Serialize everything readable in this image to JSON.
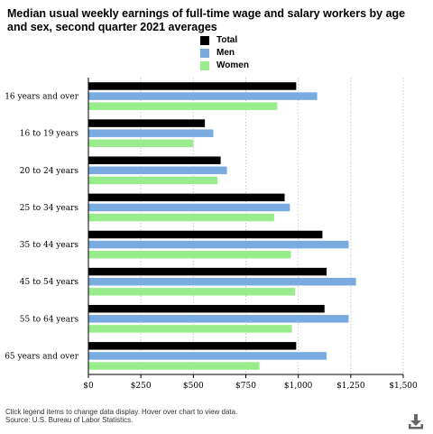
{
  "title": "Median usual weekly earnings of full-time wage and salary workers by age and sex, second quarter 2021 averages",
  "footer": {
    "note": "Click legend items to change data display. Hover over chart to view data.",
    "source": "Source: U.S. Bureau of Labor Statistics."
  },
  "icons": {
    "download": "download-icon"
  },
  "chart_data": {
    "type": "bar",
    "orientation": "horizontal",
    "title": "Median usual weekly earnings of full-time wage and salary workers by age and sex, second quarter 2021 averages",
    "categories": [
      "16 years and over",
      "16 to 19 years",
      "20 to 24 years",
      "25 to 34 years",
      "35 to 44 years",
      "45 to 54 years",
      "55 to 64 years",
      "65 years and over"
    ],
    "series": [
      {
        "name": "Total",
        "color": "#000000",
        "values": [
          990,
          555,
          630,
          935,
          1115,
          1135,
          1125,
          990
        ]
      },
      {
        "name": "Men",
        "color": "#7aabe0",
        "values": [
          1090,
          595,
          660,
          960,
          1240,
          1275,
          1240,
          1135
        ]
      },
      {
        "name": "Women",
        "color": "#99ec8c",
        "values": [
          900,
          500,
          615,
          885,
          965,
          985,
          970,
          815
        ]
      }
    ],
    "xlim": [
      0,
      1500
    ],
    "xticks": [
      0,
      250,
      500,
      750,
      1000,
      1250,
      1500
    ],
    "xtick_labels": [
      "$0",
      "$250",
      "$500",
      "$750",
      "$1,000",
      "$1,250",
      "$1,500"
    ],
    "grid": "vertical dotted",
    "legend_position": "top-center",
    "xlabel": "",
    "ylabel": ""
  }
}
